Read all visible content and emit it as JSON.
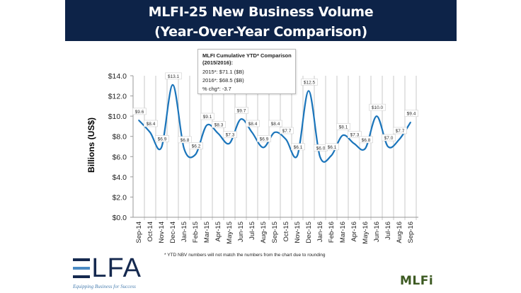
{
  "header": {
    "title_line1": "MLFI-25 New Business Volume",
    "title_line2": "(Year-Over-Year Comparison)"
  },
  "ytd_box": {
    "title": "MLFI Cumulative YTD* Comparison (2015/2016):",
    "row_2015": "2015*: $71.1  ($B)",
    "row_2016": "2016*: $68.5  ($B)",
    "pct_change": "% chg*: -3.7"
  },
  "footnote": "*  YTD NBV numbers will not match the numbers from the chart due to rounding",
  "logos": {
    "elfa_text": "ELFA",
    "elfa_tagline": "Equipping Business for Success",
    "mlfi_text": "MLFi"
  },
  "colors": {
    "header_bg": "#0d2348",
    "line": "#1b75bb",
    "grid": "#c8c8c8",
    "elfa_navy": "#15294f",
    "elfa_blue": "#4a8ac4"
  },
  "chart_data": {
    "type": "line",
    "title": "MLFI-25 New Business Volume (Year-Over-Year Comparison)",
    "xlabel": "",
    "ylabel": "Billions (US$)",
    "ylim": [
      0,
      14
    ],
    "yticks": [
      "$0.0",
      "$2.0",
      "$4.0",
      "$6.0",
      "$8.0",
      "$10.0",
      "$12.0",
      "$14.0"
    ],
    "ytick_values": [
      0,
      2,
      4,
      6,
      8,
      10,
      12,
      14
    ],
    "grid": "vertical",
    "smooth": true,
    "categories": [
      "Sep-14",
      "Oct-14",
      "Nov-14",
      "Dec-14",
      "Jan-15",
      "Feb-15",
      "Mar-15",
      "Apr-15",
      "May-15",
      "Jun-15",
      "Jul-15",
      "Aug-15",
      "Sep-15",
      "Oct-15",
      "Nov-15",
      "Dec-15",
      "Jan-16",
      "Feb-16",
      "Mar-16",
      "Apr-16",
      "May-16",
      "Jun-16",
      "Jul-16",
      "Aug-16",
      "Sep-16"
    ],
    "values": [
      9.6,
      8.4,
      6.9,
      13.1,
      6.8,
      6.2,
      9.1,
      8.3,
      7.3,
      9.7,
      8.4,
      6.9,
      8.4,
      7.7,
      6.1,
      12.5,
      6.0,
      6.1,
      8.1,
      7.3,
      6.8,
      10.0,
      7.0,
      7.7,
      9.4
    ],
    "data_labels": [
      "$9.6",
      "$8.4",
      "$6.9",
      "$13.1",
      "$6.8",
      "$6.2",
      "$9.1",
      "$8.3",
      "$7.3",
      "$9.7",
      "$8.4",
      "$6.9",
      "$8.4",
      "$7.7",
      "$6.1",
      "$12.5",
      "$6.0",
      "$6.1",
      "$8.1",
      "$7.3",
      "$6.8",
      "$10.0",
      "$7.0",
      "$7.7",
      "$9.4"
    ]
  }
}
